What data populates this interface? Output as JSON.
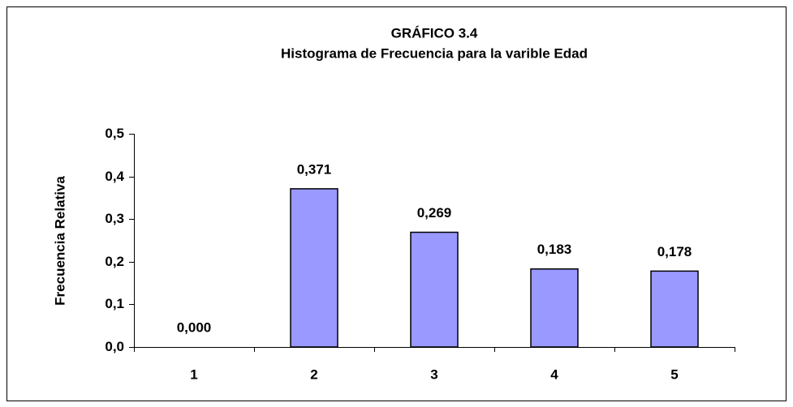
{
  "chart_data": {
    "type": "bar",
    "title": "GRÁFICO 3.4",
    "subtitle": "Histograma de Frecuencia para la varible Edad",
    "y_label": "Frecuencia Relativa",
    "categories": [
      "1",
      "2",
      "3",
      "4",
      "5"
    ],
    "values": [
      0,
      0.371,
      0.269,
      0.183,
      0.178
    ],
    "value_labels": [
      "0,000",
      "0,371",
      "0,269",
      "0,183",
      "0,178"
    ],
    "color": "#9999ff",
    "ylim": [
      0,
      0.5
    ],
    "yticks": [
      {
        "value": 0,
        "label": "0,0"
      },
      {
        "value": 0.1,
        "label": "0,1"
      },
      {
        "value": 0.2,
        "label": "0,2"
      },
      {
        "value": 0.3,
        "label": "0,3"
      },
      {
        "value": 0.4,
        "label": "0,4"
      },
      {
        "value": 0.5,
        "label": "0,5"
      }
    ],
    "grid": false
  }
}
